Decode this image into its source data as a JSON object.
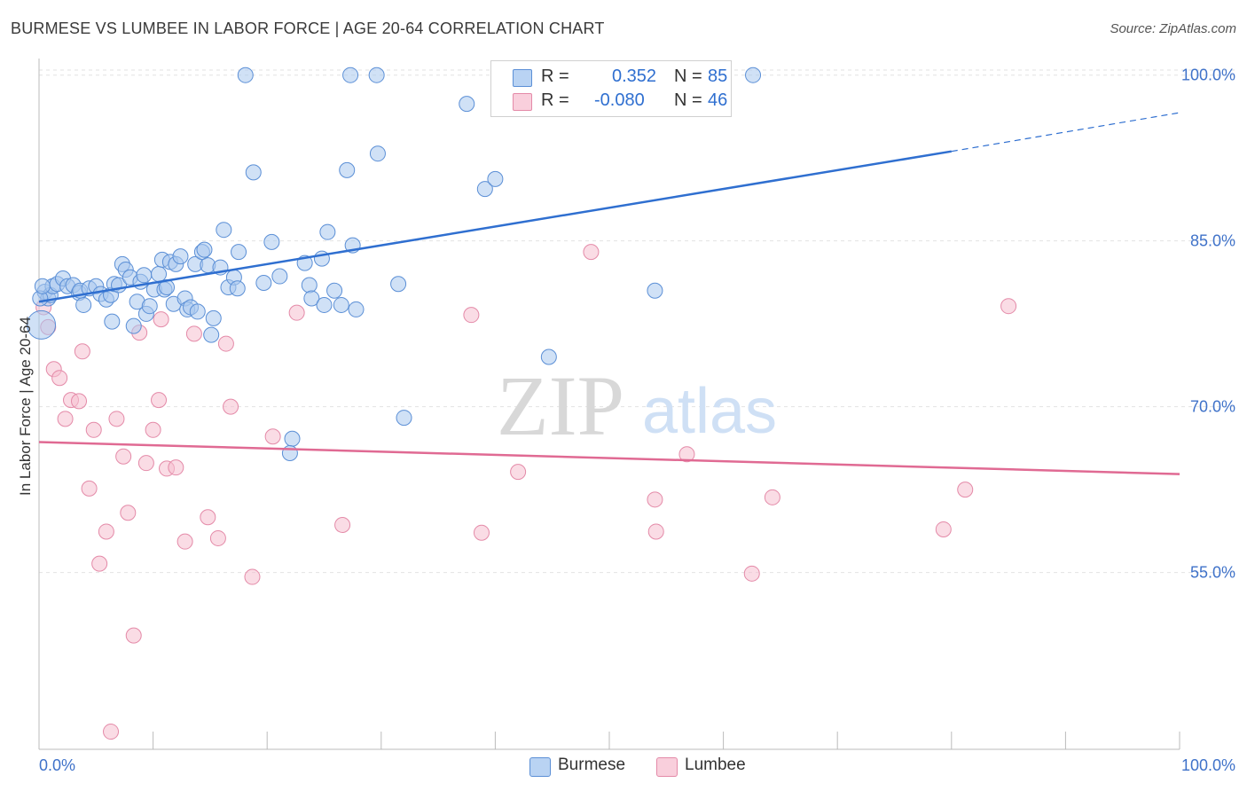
{
  "title": "BURMESE VS LUMBEE IN LABOR FORCE | AGE 20-64 CORRELATION CHART",
  "source": "Source: ZipAtlas.com",
  "watermark": {
    "zip": "ZIP",
    "atlas": "atlas"
  },
  "colors": {
    "burmese_fill": "#a9c8ef",
    "burmese_stroke": "#5b8fd6",
    "burmese_line": "#2f6fd0",
    "lumbee_fill": "#f6bfd0",
    "lumbee_stroke": "#e48aa8",
    "lumbee_line": "#e06a93",
    "tick_label": "#3f72c9",
    "grid": "#e2e2e2"
  },
  "legend": {
    "rows": [
      {
        "r_label": "R =",
        "r_value": "0.352",
        "n_label": "N =",
        "n_value": "85"
      },
      {
        "r_label": "R =",
        "r_value": "-0.080",
        "n_label": "N =",
        "n_value": "46"
      }
    ]
  },
  "bottom_legend": {
    "items": [
      "Burmese",
      "Lumbee"
    ]
  },
  "chart_data": {
    "type": "scatter",
    "title": "BURMESE VS LUMBEE IN LABOR FORCE | AGE 20-64 CORRELATION CHART",
    "xlabel": "",
    "ylabel": "In Labor Force | Age 20-64",
    "xlim": [
      0,
      100
    ],
    "ylim": [
      39,
      101.5
    ],
    "x_tick_labels": [
      "0.0%",
      "100.0%"
    ],
    "y_ticks": [
      55,
      70,
      85,
      100
    ],
    "y_tick_labels": [
      "55.0%",
      "70.0%",
      "85.0%",
      "100.0%"
    ],
    "grid": true,
    "legend_position": "top-center",
    "series": [
      {
        "name": "Burmese",
        "r": 0.352,
        "n": 85,
        "trend": {
          "x0": 0,
          "y0": 79.5,
          "x1": 80,
          "y1": 93.1,
          "dashed_to": {
            "x": 100,
            "y": 96.6
          }
        },
        "points": [
          [
            0.5,
            80.4
          ],
          [
            0.8,
            79.8
          ],
          [
            1.0,
            80.1
          ],
          [
            1.2,
            80.9
          ],
          [
            1.6,
            81.1
          ],
          [
            2.1,
            81.6
          ],
          [
            2.5,
            80.9
          ],
          [
            3.0,
            81.0
          ],
          [
            3.5,
            80.3
          ],
          [
            3.9,
            79.2
          ],
          [
            3.6,
            80.5
          ],
          [
            4.4,
            80.7
          ],
          [
            5.0,
            80.9
          ],
          [
            5.4,
            80.2
          ],
          [
            5.9,
            79.7
          ],
          [
            6.3,
            80.1
          ],
          [
            6.6,
            81.1
          ],
          [
            6.4,
            77.7
          ],
          [
            7.0,
            81.0
          ],
          [
            7.3,
            82.9
          ],
          [
            7.6,
            82.4
          ],
          [
            8.0,
            81.7
          ],
          [
            8.3,
            77.3
          ],
          [
            8.6,
            79.5
          ],
          [
            8.9,
            81.3
          ],
          [
            9.2,
            81.9
          ],
          [
            9.4,
            78.4
          ],
          [
            9.7,
            79.1
          ],
          [
            10.1,
            80.6
          ],
          [
            10.5,
            82.0
          ],
          [
            10.8,
            83.3
          ],
          [
            11.0,
            80.6
          ],
          [
            11.2,
            80.8
          ],
          [
            11.5,
            83.1
          ],
          [
            11.8,
            79.3
          ],
          [
            12.0,
            82.9
          ],
          [
            12.4,
            83.6
          ],
          [
            12.8,
            79.8
          ],
          [
            13.0,
            78.8
          ],
          [
            13.3,
            79.0
          ],
          [
            13.7,
            82.9
          ],
          [
            13.9,
            78.6
          ],
          [
            14.3,
            84.0
          ],
          [
            14.5,
            84.2
          ],
          [
            14.8,
            82.8
          ],
          [
            15.1,
            76.5
          ],
          [
            15.3,
            78.0
          ],
          [
            15.9,
            82.6
          ],
          [
            16.2,
            86.0
          ],
          [
            16.6,
            80.8
          ],
          [
            17.1,
            81.7
          ],
          [
            17.5,
            84.0
          ],
          [
            17.4,
            80.7
          ],
          [
            18.1,
            100.0
          ],
          [
            18.8,
            91.2
          ],
          [
            19.7,
            81.2
          ],
          [
            20.4,
            84.9
          ],
          [
            21.1,
            81.8
          ],
          [
            22.2,
            67.1
          ],
          [
            22.0,
            65.8
          ],
          [
            23.3,
            83.0
          ],
          [
            23.7,
            81.0
          ],
          [
            23.9,
            79.8
          ],
          [
            24.8,
            83.4
          ],
          [
            25.0,
            79.2
          ],
          [
            25.3,
            85.8
          ],
          [
            25.9,
            80.5
          ],
          [
            26.5,
            79.2
          ],
          [
            27.0,
            91.4
          ],
          [
            27.5,
            84.6
          ],
          [
            27.8,
            78.8
          ],
          [
            27.3,
            100.0
          ],
          [
            29.6,
            100.0
          ],
          [
            29.7,
            92.9
          ],
          [
            31.5,
            81.1
          ],
          [
            32.0,
            69.0
          ],
          [
            37.5,
            97.4
          ],
          [
            39.1,
            89.7
          ],
          [
            40.0,
            90.6
          ],
          [
            44.7,
            74.5
          ],
          [
            54.0,
            80.5
          ],
          [
            62.6,
            100.0
          ],
          [
            0.1,
            79.8
          ],
          [
            0.2,
            77.4
          ],
          [
            0.3,
            80.9
          ]
        ]
      },
      {
        "name": "Lumbee",
        "r": -0.08,
        "n": 46,
        "trend": {
          "x0": 0,
          "y0": 66.8,
          "x1": 100,
          "y1": 63.9
        },
        "points": [
          [
            0.4,
            79.0
          ],
          [
            0.8,
            77.2
          ],
          [
            1.3,
            73.4
          ],
          [
            1.8,
            72.6
          ],
          [
            2.3,
            68.9
          ],
          [
            2.8,
            70.6
          ],
          [
            3.5,
            70.5
          ],
          [
            3.8,
            75.0
          ],
          [
            4.4,
            62.6
          ],
          [
            4.8,
            67.9
          ],
          [
            5.3,
            55.8
          ],
          [
            5.9,
            58.7
          ],
          [
            6.8,
            68.9
          ],
          [
            7.4,
            65.5
          ],
          [
            7.8,
            60.4
          ],
          [
            8.3,
            49.3
          ],
          [
            8.8,
            76.7
          ],
          [
            9.4,
            64.9
          ],
          [
            10.0,
            67.9
          ],
          [
            10.5,
            70.6
          ],
          [
            10.7,
            77.9
          ],
          [
            11.2,
            64.4
          ],
          [
            12.0,
            64.5
          ],
          [
            12.8,
            57.8
          ],
          [
            13.6,
            76.6
          ],
          [
            14.8,
            60.0
          ],
          [
            15.7,
            58.1
          ],
          [
            16.4,
            75.7
          ],
          [
            16.8,
            70.0
          ],
          [
            18.7,
            54.6
          ],
          [
            20.5,
            67.3
          ],
          [
            22.6,
            78.5
          ],
          [
            26.6,
            59.3
          ],
          [
            37.9,
            78.3
          ],
          [
            38.8,
            58.6
          ],
          [
            42.0,
            64.1
          ],
          [
            48.4,
            84.0
          ],
          [
            54.0,
            61.6
          ],
          [
            54.1,
            58.7
          ],
          [
            56.8,
            65.7
          ],
          [
            62.5,
            54.9
          ],
          [
            64.3,
            61.8
          ],
          [
            79.3,
            58.9
          ],
          [
            81.2,
            62.5
          ],
          [
            85.0,
            79.1
          ],
          [
            6.3,
            40.6
          ]
        ]
      }
    ]
  }
}
